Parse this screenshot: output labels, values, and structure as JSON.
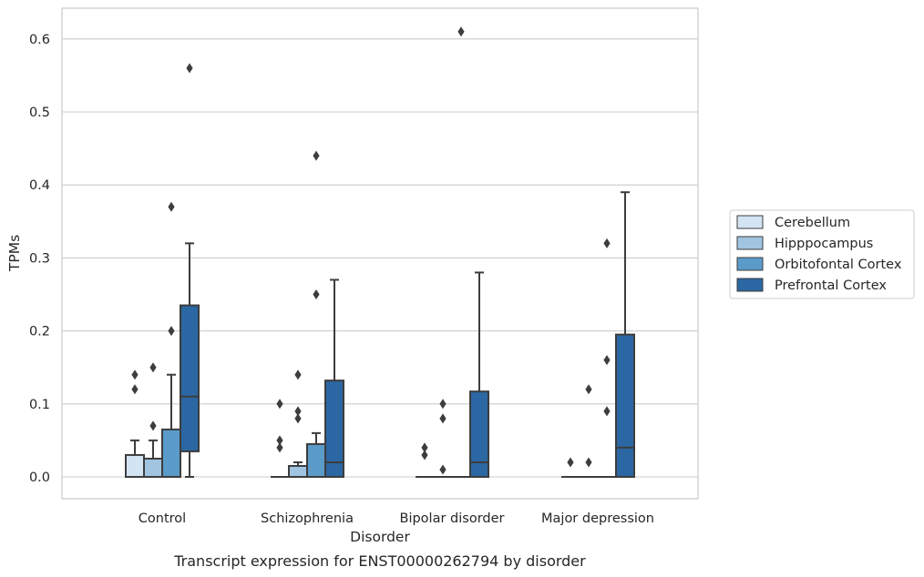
{
  "chart_data": {
    "type": "box",
    "caption": "Transcript expression for ENST00000262794 by disorder",
    "xlabel": "Disorder",
    "ylabel": "TPMs",
    "ylim": [
      -0.03,
      0.642
    ],
    "yticks": [
      0.0,
      0.1,
      0.2,
      0.3,
      0.4,
      0.5,
      0.6
    ],
    "ytick_labels": [
      "0.0",
      "0.1",
      "0.2",
      "0.3",
      "0.4",
      "0.5",
      "0.6"
    ],
    "grid": "horizontal",
    "legend_position": "right",
    "categories": [
      "Control",
      "Schizophrenia",
      "Bipolar disorder",
      "Major depression"
    ],
    "series": [
      {
        "name": "Cerebellum",
        "color": "#d3e4f3",
        "boxes": [
          {
            "whislo": 0.0,
            "q1": 0.0,
            "med": 0.0,
            "q3": 0.03,
            "whishi": 0.05,
            "fliers": [
              0.12,
              0.14
            ]
          },
          {
            "whislo": 0.0,
            "q1": 0.0,
            "med": 0.0,
            "q3": 0.0,
            "whishi": 0.0,
            "fliers": [
              0.04,
              0.05,
              0.1
            ]
          },
          {
            "whislo": 0.0,
            "q1": 0.0,
            "med": 0.0,
            "q3": 0.0,
            "whishi": 0.0,
            "fliers": [
              0.03,
              0.04
            ]
          },
          {
            "whislo": 0.0,
            "q1": 0.0,
            "med": 0.0,
            "q3": 0.0,
            "whishi": 0.0,
            "fliers": [
              0.02
            ]
          }
        ]
      },
      {
        "name": "Hipppocampus",
        "color": "#a1c5e0",
        "boxes": [
          {
            "whislo": 0.0,
            "q1": 0.0,
            "med": 0.0,
            "q3": 0.025,
            "whishi": 0.05,
            "fliers": [
              0.07,
              0.15
            ]
          },
          {
            "whislo": 0.0,
            "q1": 0.0,
            "med": 0.0,
            "q3": 0.015,
            "whishi": 0.02,
            "fliers": [
              0.08,
              0.09,
              0.14
            ]
          },
          {
            "whislo": 0.0,
            "q1": 0.0,
            "med": 0.0,
            "q3": 0.0,
            "whishi": 0.0,
            "fliers": [
              0.01,
              0.08,
              0.1
            ]
          },
          {
            "whislo": 0.0,
            "q1": 0.0,
            "med": 0.0,
            "q3": 0.0,
            "whishi": 0.0,
            "fliers": [
              0.02,
              0.12
            ]
          }
        ]
      },
      {
        "name": "Orbitofontal Cortex",
        "color": "#5a9bc9",
        "boxes": [
          {
            "whislo": 0.0,
            "q1": 0.0,
            "med": 0.0,
            "q3": 0.065,
            "whishi": 0.14,
            "fliers": [
              0.2,
              0.37
            ]
          },
          {
            "whislo": 0.0,
            "q1": 0.0,
            "med": 0.0,
            "q3": 0.045,
            "whishi": 0.06,
            "fliers": [
              0.25,
              0.44
            ]
          },
          {
            "whislo": 0.0,
            "q1": 0.0,
            "med": 0.0,
            "q3": 0.0,
            "whishi": 0.0,
            "fliers": [
              0.61
            ]
          },
          {
            "whislo": 0.0,
            "q1": 0.0,
            "med": 0.0,
            "q3": 0.0,
            "whishi": 0.0,
            "fliers": [
              0.09,
              0.16,
              0.32
            ]
          }
        ]
      },
      {
        "name": "Prefrontal Cortex",
        "color": "#2b67a3",
        "boxes": [
          {
            "whislo": 0.0,
            "q1": 0.035,
            "med": 0.11,
            "q3": 0.235,
            "whishi": 0.32,
            "fliers": [
              0.56
            ]
          },
          {
            "whislo": 0.0,
            "q1": 0.0,
            "med": 0.02,
            "q3": 0.132,
            "whishi": 0.27,
            "fliers": []
          },
          {
            "whislo": 0.0,
            "q1": 0.0,
            "med": 0.02,
            "q3": 0.117,
            "whishi": 0.28,
            "fliers": []
          },
          {
            "whislo": 0.0,
            "q1": 0.0,
            "med": 0.04,
            "q3": 0.195,
            "whishi": 0.39,
            "fliers": []
          }
        ]
      }
    ]
  }
}
